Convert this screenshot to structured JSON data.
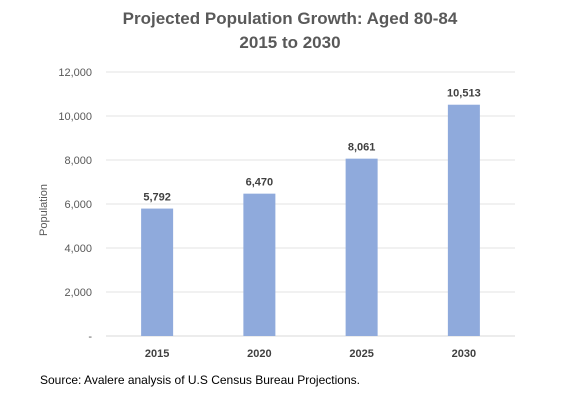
{
  "chart_data": {
    "type": "bar",
    "title": [
      "Projected Population Growth:  Aged 80-84",
      "2015 to 2030"
    ],
    "categories": [
      "2015",
      "2020",
      "2025",
      "2030"
    ],
    "values": [
      5792,
      6470,
      8061,
      10513
    ],
    "data_labels": [
      "5,792",
      "6,470",
      "8,061",
      "10,513"
    ],
    "xlabel": "",
    "ylabel": "Population",
    "ylim": [
      0,
      12000
    ],
    "yticks": [
      0,
      2000,
      4000,
      6000,
      8000,
      10000,
      12000
    ],
    "ytick_labels": [
      "-",
      "2,000",
      "4,000",
      "6,000",
      "8,000",
      "10,000",
      "12,000"
    ],
    "grid": true,
    "legend": "none",
    "bar_color": "#8faadc"
  },
  "source": "Source:  Avalere analysis of U.S Census Bureau Projections."
}
